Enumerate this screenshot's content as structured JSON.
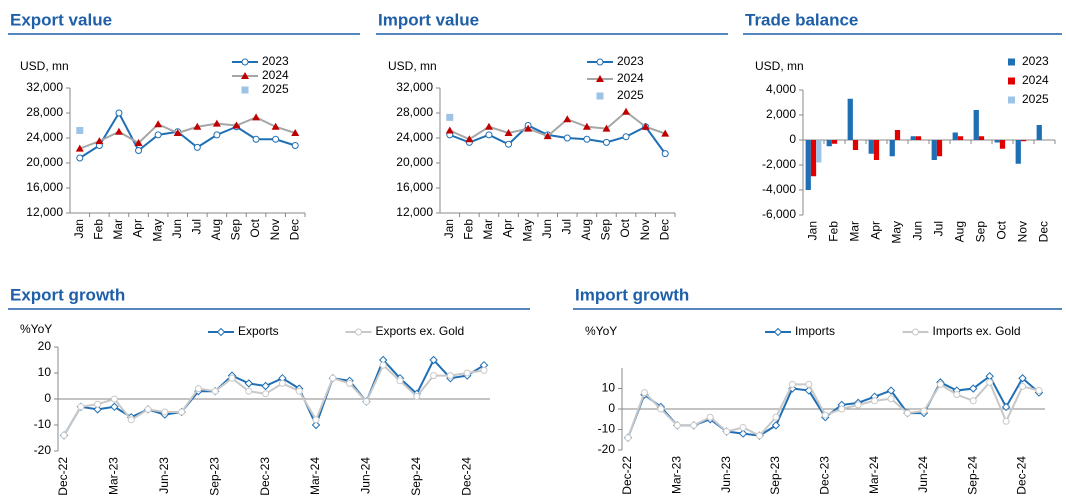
{
  "chart_data": [
    {
      "type": "line",
      "title": "Export value",
      "y_label": "USD, mn",
      "categories": [
        "Jan",
        "Feb",
        "Mar",
        "Apr",
        "May",
        "Jun",
        "Jul",
        "Aug",
        "Sep",
        "Oct",
        "Nov",
        "Dec"
      ],
      "series": [
        {
          "name": "2023",
          "color": "#1f6fb5",
          "marker": "circle",
          "marker_color": "#ffffff",
          "values": [
            20800,
            22800,
            28000,
            22000,
            24500,
            25000,
            22500,
            24500,
            25800,
            23800,
            23800,
            22800
          ]
        },
        {
          "name": "2024",
          "color": "#a6a6a6",
          "marker": "triangle",
          "marker_color": "#c00000",
          "values": [
            22300,
            23500,
            25000,
            23200,
            26200,
            24800,
            25800,
            26300,
            26000,
            27300,
            25800,
            24800
          ]
        },
        {
          "name": "2025",
          "color": "#9dc3e6",
          "marker": "square",
          "marker_color": "#9dc3e6",
          "values": [
            25200,
            null,
            null,
            null,
            null,
            null,
            null,
            null,
            null,
            null,
            null,
            null
          ]
        }
      ],
      "ylim": [
        12000,
        32000
      ],
      "yticks": [
        {
          "value": 12000,
          "label": "12,000"
        },
        {
          "value": 16000,
          "label": "16,000"
        },
        {
          "value": 20000,
          "label": "20,000"
        },
        {
          "value": 24000,
          "label": "24,000"
        },
        {
          "value": 28000,
          "label": "28,000"
        },
        {
          "value": 32000,
          "label": "32,000"
        }
      ]
    },
    {
      "type": "line",
      "title": "Import value",
      "y_label": "USD, mn",
      "categories": [
        "Jan",
        "Feb",
        "Mar",
        "Apr",
        "May",
        "Jun",
        "Jul",
        "Aug",
        "Sep",
        "Oct",
        "Nov",
        "Dec"
      ],
      "series": [
        {
          "name": "2023",
          "color": "#1f6fb5",
          "marker": "circle",
          "marker_color": "#ffffff",
          "values": [
            24500,
            23300,
            24500,
            23000,
            26000,
            24500,
            24000,
            23800,
            23300,
            24200,
            25800,
            21500
          ]
        },
        {
          "name": "2024",
          "color": "#a6a6a6",
          "marker": "triangle",
          "marker_color": "#c00000",
          "values": [
            25200,
            23800,
            25800,
            24800,
            25500,
            24300,
            27000,
            25800,
            25500,
            28200,
            25800,
            24700
          ]
        },
        {
          "name": "2025",
          "color": "#9dc3e6",
          "marker": "square",
          "marker_color": "#9dc3e6",
          "values": [
            27300,
            null,
            null,
            null,
            null,
            null,
            null,
            null,
            null,
            null,
            null,
            null
          ]
        }
      ],
      "ylim": [
        12000,
        32000
      ],
      "yticks": [
        {
          "value": 12000,
          "label": "12,000"
        },
        {
          "value": 16000,
          "label": "16,000"
        },
        {
          "value": 20000,
          "label": "20,000"
        },
        {
          "value": 24000,
          "label": "24,000"
        },
        {
          "value": 28000,
          "label": "28,000"
        },
        {
          "value": 32000,
          "label": "32,000"
        }
      ]
    },
    {
      "type": "bar",
      "title": "Trade balance",
      "y_label": "USD, mn",
      "categories": [
        "Jan",
        "Feb",
        "Mar",
        "Apr",
        "May",
        "Jun",
        "Jul",
        "Aug",
        "Sep",
        "Oct",
        "Nov",
        "Dec"
      ],
      "series": [
        {
          "name": "2023",
          "color": "#1f6fb5",
          "values": [
            -4000,
            -500,
            3300,
            -1100,
            -1300,
            300,
            -1600,
            600,
            2400,
            -200,
            -1900,
            1200
          ]
        },
        {
          "name": "2024",
          "color": "#e00000",
          "values": [
            -2900,
            -300,
            -800,
            -1600,
            800,
            300,
            -1300,
            300,
            300,
            -700,
            -100,
            0
          ]
        },
        {
          "name": "2025",
          "color": "#9dc3e6",
          "values": [
            -1800,
            null,
            null,
            null,
            null,
            null,
            null,
            null,
            null,
            null,
            null,
            null
          ]
        }
      ],
      "ylim": [
        -6000,
        4000
      ],
      "yticks": [
        {
          "value": -6000,
          "label": "-6,000"
        },
        {
          "value": -4000,
          "label": "-4,000"
        },
        {
          "value": -2000,
          "label": "-2,000"
        },
        0,
        {
          "value": 2000,
          "label": "2,000"
        },
        {
          "value": 4000,
          "label": "4,000"
        }
      ]
    },
    {
      "type": "line",
      "title": "Export growth",
      "y_label": "%YoY",
      "categories": [
        "Dec-22",
        null,
        null,
        "Mar-23",
        null,
        null,
        "Jun-23",
        null,
        null,
        "Sep-23",
        null,
        null,
        "Dec-23",
        null,
        null,
        "Mar-24",
        null,
        null,
        "Jun-24",
        null,
        null,
        "Sep-24",
        null,
        null,
        "Dec-24",
        null
      ],
      "series": [
        {
          "name": "Exports",
          "color": "#1f6fb5",
          "marker": "diamond",
          "marker_color": "#ffffff",
          "values": [
            -14,
            -3,
            -4,
            -3,
            -7,
            -4,
            -6,
            -5,
            3,
            3,
            9,
            6,
            5,
            8,
            4,
            -10,
            8,
            7,
            -1,
            15,
            8,
            2,
            15,
            8,
            9,
            13
          ]
        },
        {
          "name": "Exports ex. Gold",
          "color": "#c8c8c8",
          "marker": "circle",
          "marker_color": "#ffffff",
          "values": [
            -14,
            -3,
            -2,
            0,
            -8,
            -4,
            -5,
            -5,
            4,
            3,
            8,
            3,
            2,
            6,
            3,
            -8,
            8,
            6,
            -1,
            13,
            7,
            1,
            9,
            9,
            10,
            11
          ]
        }
      ],
      "ylim": [
        -20,
        20
      ],
      "yticks": [
        -20,
        -10,
        0,
        10,
        20
      ]
    },
    {
      "type": "line",
      "title": "Import growth",
      "y_label": "%YoY",
      "categories": [
        "Dec-22",
        null,
        null,
        "Mar-23",
        null,
        null,
        "Jun-23",
        null,
        null,
        "Sep-23",
        null,
        null,
        "Dec-23",
        null,
        null,
        "Mar-24",
        null,
        null,
        "Jun-24",
        null,
        null,
        "Sep-24",
        null,
        null,
        "Dec-24",
        null
      ],
      "series": [
        {
          "name": "Imports",
          "color": "#1f6fb5",
          "marker": "diamond",
          "marker_color": "#ffffff",
          "values": [
            -14,
            7,
            1,
            -8,
            -8,
            -5,
            -11,
            -12,
            -13,
            -8,
            10,
            9,
            -4,
            2,
            3,
            6,
            9,
            -2,
            -2,
            13,
            9,
            10,
            16,
            1,
            15,
            8
          ]
        },
        {
          "name": "Imports ex. Gold",
          "color": "#c8c8c8",
          "marker": "circle",
          "marker_color": "#ffffff",
          "values": [
            -14,
            8,
            0,
            -8,
            -8,
            -4,
            -11,
            -9,
            -13,
            -4,
            12,
            12,
            -3,
            0,
            2,
            4,
            5,
            -2,
            -1,
            12,
            7,
            4,
            13,
            -6,
            11,
            9
          ]
        }
      ],
      "ylim": [
        -20,
        20
      ],
      "yticks": [
        -20,
        -10,
        0,
        10
      ]
    }
  ]
}
